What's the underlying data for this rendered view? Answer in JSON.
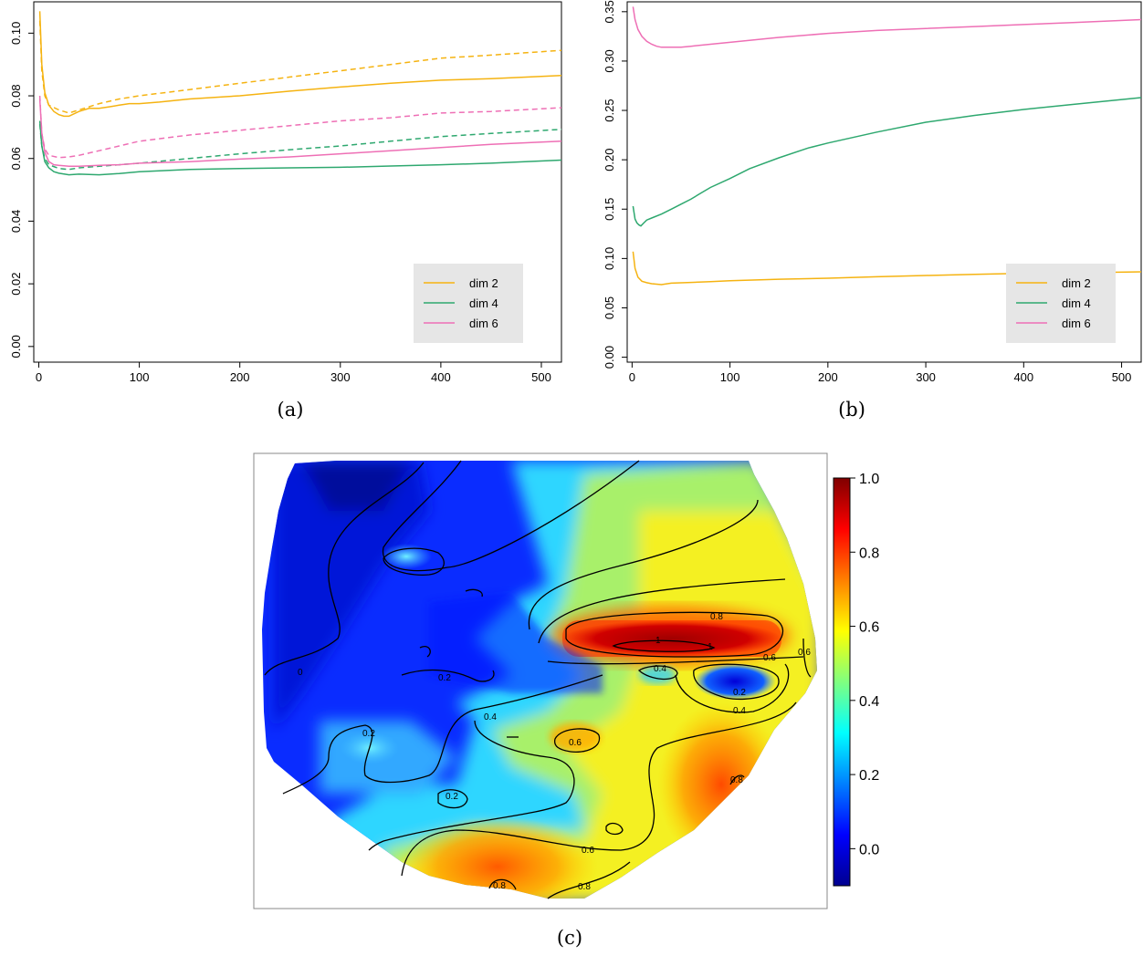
{
  "chart_data": [
    {
      "type": "line",
      "caption": "(a)",
      "xlim": [
        -5,
        520
      ],
      "ylim": [
        -0.005,
        0.11
      ],
      "xticks": [
        "0",
        "100",
        "200",
        "300",
        "400",
        "500"
      ],
      "yticks": [
        "0.00",
        "0.02",
        "0.04",
        "0.06",
        "0.08",
        "0.10"
      ],
      "legend": {
        "position": "bottom-right",
        "entries": [
          "dim 2",
          "dim 4",
          "dim 6"
        ]
      },
      "colors": {
        "dim 2": "#F5B311",
        "dim 4": "#2EA86F",
        "dim 6": "#EE6FB5"
      },
      "series": [
        {
          "name": "dim 2",
          "style": "solid",
          "color": "#F5B311",
          "x": [
            1,
            3,
            6,
            10,
            15,
            20,
            25,
            30,
            40,
            50,
            60,
            70,
            80,
            90,
            100,
            120,
            150,
            200,
            250,
            300,
            350,
            400,
            450,
            520
          ],
          "y": [
            0.107,
            0.09,
            0.081,
            0.077,
            0.075,
            0.074,
            0.0735,
            0.0735,
            0.075,
            0.076,
            0.076,
            0.0765,
            0.077,
            0.0775,
            0.0775,
            0.078,
            0.079,
            0.08,
            0.0815,
            0.0828,
            0.084,
            0.085,
            0.0855,
            0.0865
          ]
        },
        {
          "name": "dim 2 (dashed)",
          "style": "dashed",
          "color": "#F5B311",
          "x": [
            1,
            3,
            6,
            10,
            20,
            30,
            40,
            60,
            80,
            100,
            150,
            200,
            250,
            300,
            350,
            400,
            450,
            520
          ],
          "y": [
            0.104,
            0.088,
            0.08,
            0.077,
            0.0755,
            0.0745,
            0.0755,
            0.0775,
            0.079,
            0.08,
            0.082,
            0.084,
            0.086,
            0.088,
            0.09,
            0.092,
            0.093,
            0.0945
          ]
        },
        {
          "name": "dim 4",
          "style": "solid",
          "color": "#2EA86F",
          "x": [
            1,
            3,
            6,
            10,
            15,
            20,
            30,
            40,
            60,
            80,
            100,
            150,
            200,
            250,
            300,
            350,
            400,
            450,
            520
          ],
          "y": [
            0.072,
            0.064,
            0.059,
            0.057,
            0.0558,
            0.0553,
            0.0548,
            0.055,
            0.0548,
            0.0552,
            0.0558,
            0.0565,
            0.0568,
            0.057,
            0.0572,
            0.0576,
            0.058,
            0.0585,
            0.0595
          ]
        },
        {
          "name": "dim 4 (dashed)",
          "style": "dashed",
          "color": "#2EA86F",
          "x": [
            1,
            3,
            6,
            10,
            20,
            30,
            40,
            60,
            80,
            100,
            150,
            200,
            250,
            300,
            350,
            400,
            450,
            520
          ],
          "y": [
            0.071,
            0.064,
            0.06,
            0.058,
            0.0568,
            0.0565,
            0.057,
            0.0575,
            0.058,
            0.0585,
            0.06,
            0.0615,
            0.0628,
            0.064,
            0.0655,
            0.067,
            0.068,
            0.0693
          ]
        },
        {
          "name": "dim 6",
          "style": "solid",
          "color": "#EE6FB5",
          "x": [
            1,
            3,
            6,
            10,
            15,
            20,
            30,
            40,
            60,
            80,
            100,
            150,
            200,
            250,
            300,
            350,
            400,
            450,
            520
          ],
          "y": [
            0.079,
            0.068,
            0.062,
            0.059,
            0.058,
            0.0578,
            0.0575,
            0.0575,
            0.0578,
            0.058,
            0.0585,
            0.059,
            0.0598,
            0.0605,
            0.0615,
            0.0625,
            0.0635,
            0.0645,
            0.0655
          ]
        },
        {
          "name": "dim 6 (dashed)",
          "style": "dashed",
          "color": "#EE6FB5",
          "x": [
            1,
            3,
            6,
            10,
            20,
            30,
            40,
            60,
            80,
            100,
            150,
            200,
            250,
            300,
            350,
            400,
            450,
            520
          ],
          "y": [
            0.08,
            0.068,
            0.063,
            0.061,
            0.0603,
            0.0605,
            0.061,
            0.0625,
            0.064,
            0.0655,
            0.0675,
            0.069,
            0.0705,
            0.072,
            0.073,
            0.0745,
            0.075,
            0.0762
          ]
        }
      ]
    },
    {
      "type": "line",
      "caption": "(b)",
      "xlim": [
        -5,
        520
      ],
      "ylim": [
        -0.005,
        0.36
      ],
      "xticks": [
        "0",
        "100",
        "200",
        "300",
        "400",
        "500"
      ],
      "yticks": [
        "0.00",
        "0.05",
        "0.10",
        "0.15",
        "0.20",
        "0.25",
        "0.30",
        "0.35"
      ],
      "legend": {
        "position": "bottom-right",
        "entries": [
          "dim 2",
          "dim 4",
          "dim 6"
        ]
      },
      "colors": {
        "dim 2": "#F5B311",
        "dim 4": "#2EA86F",
        "dim 6": "#EE6FB5"
      },
      "series": [
        {
          "name": "dim 2",
          "style": "solid",
          "color": "#F5B311",
          "x": [
            1,
            3,
            6,
            10,
            15,
            20,
            30,
            40,
            60,
            80,
            100,
            150,
            200,
            250,
            300,
            350,
            400,
            450,
            520
          ],
          "y": [
            0.107,
            0.09,
            0.081,
            0.077,
            0.0755,
            0.0745,
            0.0735,
            0.075,
            0.0758,
            0.0765,
            0.0775,
            0.079,
            0.08,
            0.0815,
            0.0828,
            0.084,
            0.085,
            0.0855,
            0.0865
          ]
        },
        {
          "name": "dim 4",
          "style": "solid",
          "color": "#2EA86F",
          "x": [
            1,
            3,
            5,
            7,
            9,
            12,
            15,
            20,
            30,
            40,
            50,
            60,
            70,
            80,
            100,
            120,
            150,
            180,
            200,
            250,
            300,
            350,
            400,
            450,
            520
          ],
          "y": [
            0.153,
            0.14,
            0.136,
            0.134,
            0.133,
            0.136,
            0.139,
            0.141,
            0.145,
            0.15,
            0.155,
            0.16,
            0.166,
            0.172,
            0.181,
            0.191,
            0.202,
            0.212,
            0.217,
            0.228,
            0.238,
            0.245,
            0.251,
            0.256,
            0.263
          ]
        },
        {
          "name": "dim 6",
          "style": "solid",
          "color": "#EE6FB5",
          "x": [
            1,
            3,
            6,
            10,
            15,
            20,
            25,
            30,
            40,
            50,
            60,
            80,
            100,
            150,
            200,
            250,
            300,
            350,
            400,
            450,
            520
          ],
          "y": [
            0.355,
            0.342,
            0.332,
            0.325,
            0.32,
            0.317,
            0.315,
            0.314,
            0.314,
            0.314,
            0.315,
            0.317,
            0.319,
            0.324,
            0.328,
            0.331,
            0.333,
            0.335,
            0.337,
            0.339,
            0.342
          ]
        }
      ]
    },
    {
      "type": "heatmap",
      "caption": "(c)",
      "colorbar": {
        "min": -0.1,
        "max": 1.0,
        "ticks": [
          "0.0",
          "0.2",
          "0.4",
          "0.6",
          "0.8",
          "1.0"
        ],
        "colormap": "jet"
      },
      "contour_labels": [
        "0.8",
        "1",
        "1",
        "0.6",
        "0.6",
        "0.4",
        "0.2",
        "0.4",
        "0.4",
        "0.2",
        "0.2",
        "0.6",
        "0.2",
        "0.6",
        "0.8",
        "0.8",
        "0.8",
        "0"
      ]
    }
  ]
}
